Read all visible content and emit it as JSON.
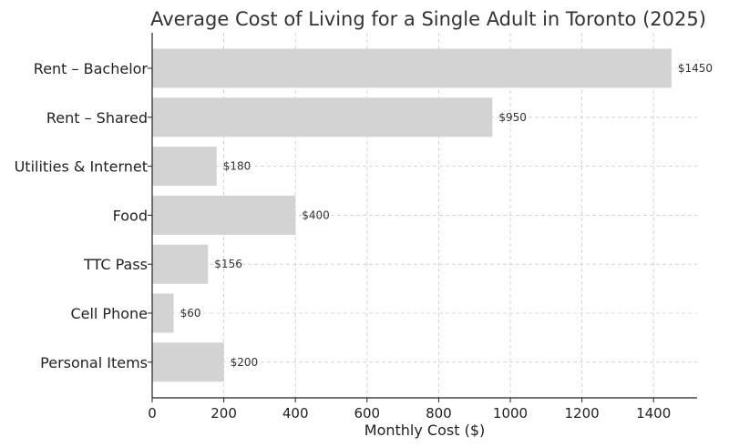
{
  "chart_data": {
    "type": "bar",
    "orientation": "horizontal",
    "title": "Average Cost of Living for a Single Adult in Toronto (2025)",
    "xlabel": "Monthly Cost ($)",
    "ylabel": "",
    "categories": [
      "Rent – Bachelor",
      "Rent – Shared",
      "Utilities & Internet",
      "Food",
      "TTC Pass",
      "Cell Phone",
      "Personal Items"
    ],
    "values": [
      1450,
      950,
      180,
      400,
      156,
      60,
      200
    ],
    "data_labels": [
      "$1450",
      "$950",
      "$180",
      "$400",
      "$156",
      "$60",
      "$200"
    ],
    "xticks": [
      0,
      200,
      400,
      600,
      800,
      1000,
      1200,
      1400
    ],
    "xtick_labels": [
      "0",
      "200",
      "400",
      "600",
      "800",
      "1000",
      "1200",
      "1400"
    ],
    "xlim": [
      0,
      1522
    ],
    "grid": true,
    "bar_color": "#d3d3d3",
    "grid_color": "#cccccc"
  }
}
